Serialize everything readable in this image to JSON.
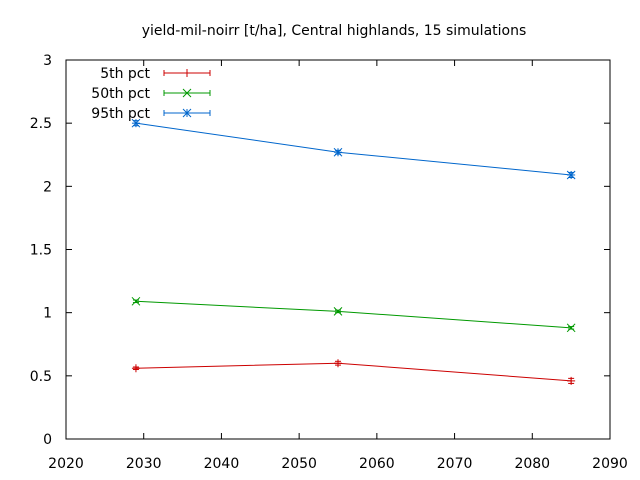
{
  "chart_data": {
    "type": "line",
    "title": "yield-mil-noirr [t/ha], Central highlands, 15 simulations",
    "xlabel": "",
    "ylabel": "",
    "xlim": [
      2020,
      2090
    ],
    "ylim": [
      0,
      3
    ],
    "xticks": [
      2020,
      2030,
      2040,
      2050,
      2060,
      2070,
      2080,
      2090
    ],
    "yticks": [
      0,
      0.5,
      1,
      1.5,
      2,
      2.5,
      3
    ],
    "ytick_labels": [
      "0",
      "0.5",
      "1",
      "1.5",
      "2",
      "2.5",
      "3"
    ],
    "grid": false,
    "legend_position": "top-left",
    "x": [
      2029,
      2055,
      2085
    ],
    "series": [
      {
        "name": "5th pct",
        "color": "#cc0000",
        "marker": "plus",
        "values": [
          0.56,
          0.6,
          0.46
        ],
        "errors": [
          0.01,
          0.015,
          0.02
        ]
      },
      {
        "name": "50th pct",
        "color": "#009900",
        "marker": "cross",
        "values": [
          1.09,
          1.01,
          0.88
        ],
        "errors": [
          0.01,
          0.01,
          0.01
        ]
      },
      {
        "name": "95th pct",
        "color": "#0066cc",
        "marker": "star",
        "values": [
          2.5,
          2.27,
          2.09
        ],
        "errors": [
          0.02,
          0.015,
          0.02
        ]
      }
    ]
  }
}
